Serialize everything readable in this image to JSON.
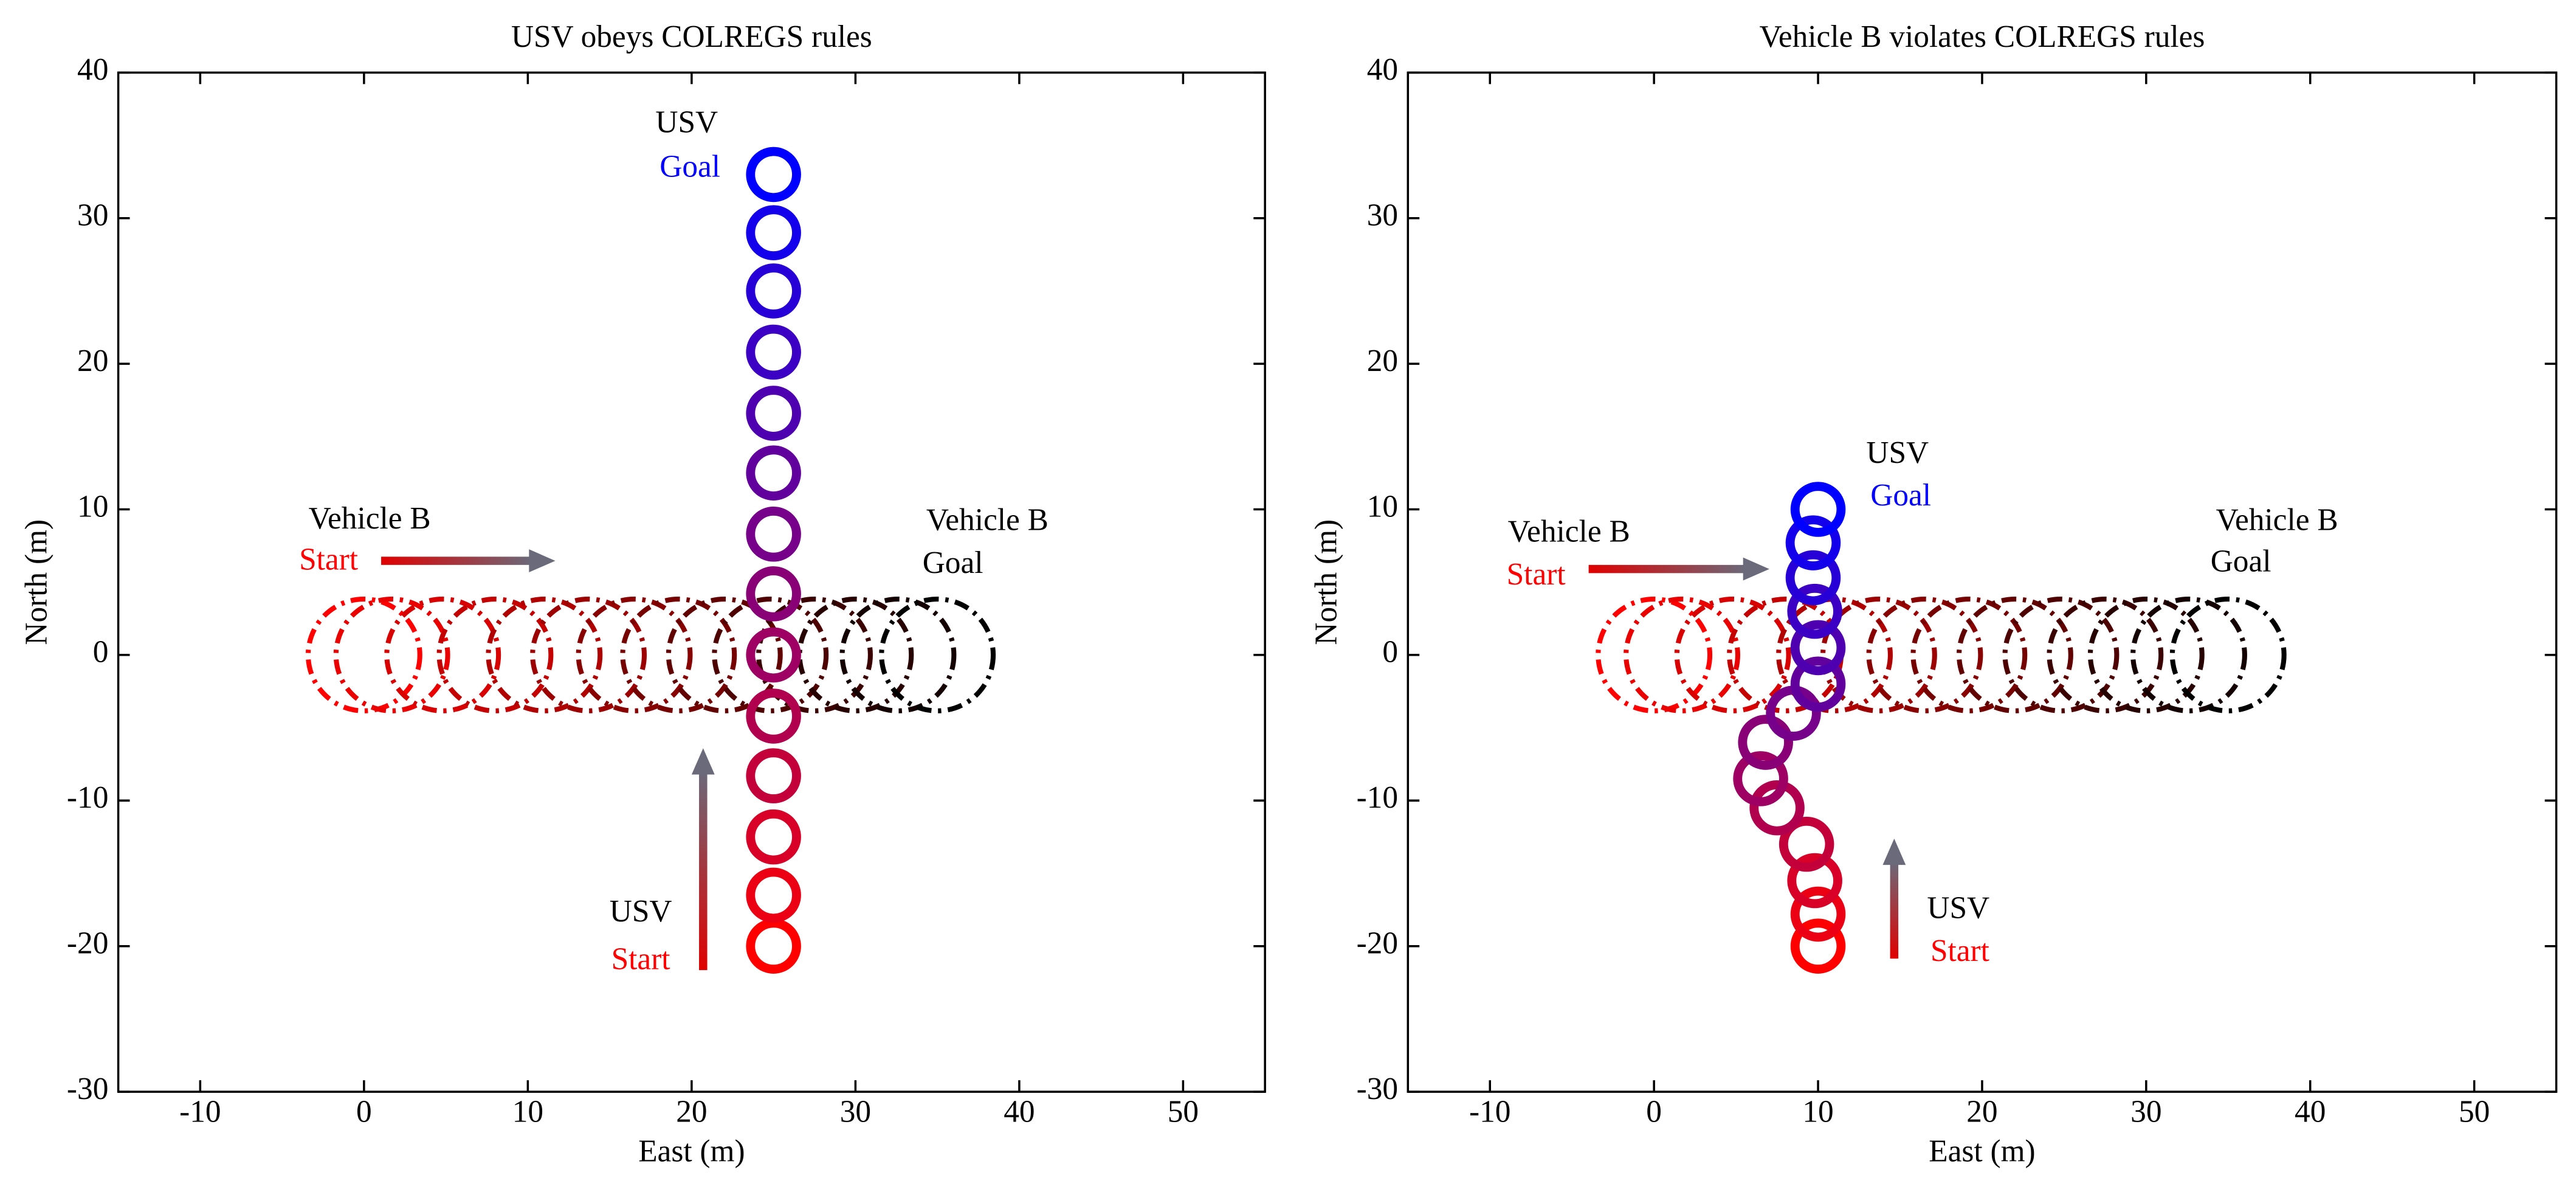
{
  "chart_data": [
    {
      "type": "scatter",
      "title": "USV obeys COLREGS rules",
      "xlabel": "East (m)",
      "ylabel": "North (m)",
      "xlim": [
        -15,
        55
      ],
      "ylim": [
        -30,
        40
      ],
      "xticks": [
        -10,
        0,
        10,
        20,
        30,
        40,
        50
      ],
      "yticks": [
        -30,
        -20,
        -10,
        0,
        10,
        20,
        30,
        40
      ],
      "series": [
        {
          "x": [
            25,
            25,
            25,
            25,
            25,
            25,
            25,
            25,
            25,
            25,
            25,
            25,
            25,
            25
          ],
          "y": [
            -20,
            -16.5,
            -12.5,
            -8.3,
            -4.2,
            0,
            4.2,
            8.3,
            12.5,
            16.6,
            20.8,
            25,
            29,
            33
          ],
          "color": [
            "#ff0000",
            "#0000ff"
          ],
          "style": "solid"
        },
        {
          "x": [
            0,
            1.7,
            4.8,
            8,
            11,
            13.7,
            16.5,
            19.2,
            22,
            24.8,
            27.5,
            30,
            32.6,
            35
          ],
          "y": [
            0,
            0,
            0,
            0,
            0,
            0,
            0,
            0,
            0,
            0,
            0,
            0,
            0,
            0
          ],
          "color": [
            "#ff0000",
            "#000000"
          ],
          "style": "dashed"
        }
      ],
      "annotations": [
        {
          "text": "USV",
          "color": "#000000"
        },
        {
          "text": "Goal",
          "color": "#0000ff"
        },
        {
          "text": "Vehicle B",
          "color": "#000000"
        },
        {
          "text": "Start",
          "color": "#ff0000"
        },
        {
          "text": "Vehicle B",
          "color": "#000000"
        },
        {
          "text": "Goal",
          "color": "#000000"
        },
        {
          "text": "USV",
          "color": "#000000"
        },
        {
          "text": "Start",
          "color": "#ff0000"
        }
      ]
    },
    {
      "type": "scatter",
      "title": "Vehicle B violates COLREGS rules",
      "xlabel": "East (m)",
      "ylabel": "North (m)",
      "xlim": [
        -15,
        55
      ],
      "ylim": [
        -30,
        40
      ],
      "xticks": [
        -10,
        0,
        10,
        20,
        30,
        40,
        50
      ],
      "yticks": [
        -30,
        -20,
        -10,
        0,
        10,
        20,
        30,
        40
      ],
      "series": [
        {
          "x": [
            10,
            10,
            9.8,
            9.3,
            7.5,
            6.5,
            6.8,
            8.5,
            10,
            10,
            9.8,
            9.7,
            9.7,
            10
          ],
          "y": [
            -20,
            -17.8,
            -15.5,
            -13,
            -10.5,
            -8.5,
            -6,
            -4,
            -2,
            0.5,
            3,
            5.3,
            7.7,
            10
          ],
          "color": [
            "#ff0000",
            "#0000ff"
          ],
          "style": "solid"
        },
        {
          "x": [
            0,
            1.7,
            4.8,
            8,
            11,
            13.7,
            16.5,
            19.2,
            22,
            24.8,
            27.5,
            30,
            32.6,
            35
          ],
          "y": [
            0,
            0,
            0,
            0,
            0,
            0,
            0,
            0,
            0,
            0,
            0,
            0,
            0,
            0
          ],
          "color": [
            "#ff0000",
            "#000000"
          ],
          "style": "dashed"
        }
      ],
      "annotations": [
        {
          "text": "USV",
          "color": "#000000"
        },
        {
          "text": "Goal",
          "color": "#0000ff"
        },
        {
          "text": "Vehicle B",
          "color": "#000000"
        },
        {
          "text": "Start",
          "color": "#ff0000"
        },
        {
          "text": "Vehicle B",
          "color": "#000000"
        },
        {
          "text": "Goal",
          "color": "#000000"
        },
        {
          "text": "USV",
          "color": "#000000"
        },
        {
          "text": "Start",
          "color": "#ff0000"
        }
      ]
    }
  ]
}
